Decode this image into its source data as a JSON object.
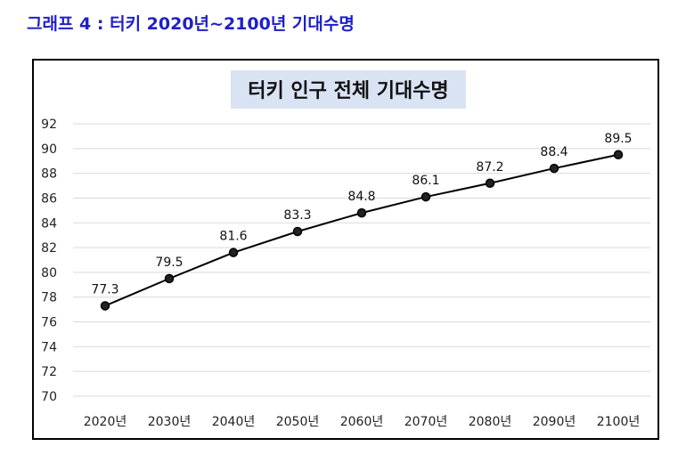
{
  "caption": "그래프 4 : 터키 2020년~2100년 기대수명",
  "chart_data": {
    "type": "line",
    "title": "터키 인구 전체 기대수명",
    "categories": [
      "2020년",
      "2030년",
      "2040년",
      "2050년",
      "2060년",
      "2070년",
      "2080년",
      "2090년",
      "2100년"
    ],
    "series": [
      {
        "values": [
          77.3,
          79.5,
          81.6,
          83.3,
          84.8,
          86.1,
          87.2,
          88.4,
          89.5
        ]
      }
    ],
    "data_labels": [
      "77.3",
      "79.5",
      "81.6",
      "83.3",
      "84.8",
      "86.1",
      "87.2",
      "88.4",
      "89.5"
    ],
    "yticks": [
      "70",
      "72",
      "74",
      "76",
      "78",
      "80",
      "82",
      "84",
      "86",
      "88",
      "90",
      "92"
    ],
    "ylim": [
      70,
      92
    ],
    "grid": true,
    "legend": "none",
    "colors": {
      "line": "#000000",
      "grid": "#d9d9d9",
      "title_bg": "#dae3f3",
      "caption": "#1f1fc8"
    }
  }
}
